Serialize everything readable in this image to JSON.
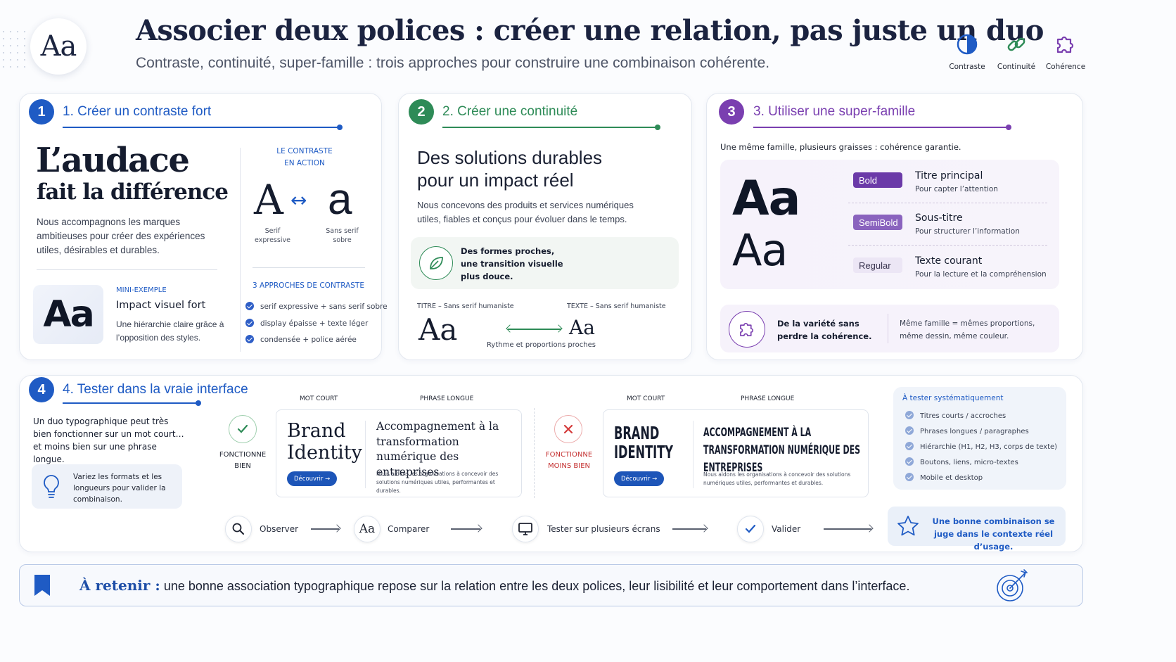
{
  "header": {
    "logo_text": "Aa",
    "title": "Associer deux polices : créer une relation, pas juste un duo",
    "subtitle": "Contraste, continuité, super-famille : trois approches pour construire une combinaison cohérente.",
    "icons": [
      {
        "icon": "half-circle-icon",
        "label": "Contraste",
        "color": "#1f5bc4"
      },
      {
        "icon": "link-icon",
        "label": "Continuité",
        "color": "#2e8b57"
      },
      {
        "icon": "puzzle-icon",
        "label": "Cohérence",
        "color": "#7a3fb0"
      }
    ]
  },
  "section1": {
    "number": "1",
    "title": "1. Créer un contraste fort",
    "color": "#1f5bc4",
    "headline_1": "L’audace",
    "headline_2": "fait la différence",
    "body": "Nous accompagnons les marques ambitieuses pour créer des expériences utiles, désirables et durables.",
    "mini_sample": "Aa",
    "mini_label": "MINI-EXEMPLE",
    "mini_title": "Impact visuel fort",
    "mini_body": "Une hiérarchie claire grâce à l’opposition des styles.",
    "action_label_1": "LE CONTRASTE",
    "action_label_2": "EN ACTION",
    "glyph_left": "A",
    "glyph_arrow": "↔",
    "glyph_right": "a",
    "glyph_left_caption": "Serif expressive",
    "glyph_right_caption": "Sans serif sobre",
    "approaches_title": "3 APPROCHES DE CONTRASTE",
    "approaches": [
      "serif expressive + sans serif sobre",
      "display épaisse + texte léger",
      "condensée + police aérée"
    ]
  },
  "section2": {
    "number": "2",
    "title": "2. Créer une continuité",
    "color": "#2e8b57",
    "headline": "Des solutions durables pour un impact réel",
    "body": "Nous concevons des produits et services numériques utiles, fiables et conçus pour évoluer dans le temps.",
    "callout": "Des formes proches, une transition visuelle plus douce.",
    "title_label": "TITRE – Sans serif humaniste",
    "text_label": "TEXTE – Sans serif humaniste",
    "sample_left": "Aa",
    "sample_right": "Aa",
    "caption": "Rythme et proportions proches"
  },
  "section3": {
    "number": "3",
    "title": "3. Utiliser une super-famille",
    "color": "#7a3fb0",
    "intro": "Une même famille, plusieurs graisses : cohérence garantie.",
    "sample_bold": "Aa",
    "sample_regular": "Aa",
    "weights": [
      {
        "tag": "Bold",
        "title": "Titre principal",
        "desc": "Pour capter l’attention"
      },
      {
        "tag": "SemiBold",
        "title": "Sous-titre",
        "desc": "Pour structurer l’information"
      },
      {
        "tag": "Regular",
        "title": "Texte courant",
        "desc": "Pour la lecture et la compréhension"
      }
    ],
    "footer_left": "De la variété sans perdre la cohérence.",
    "footer_right": "Même famille = mêmes proportions, même dessin, même couleur."
  },
  "section4": {
    "number": "4",
    "title": "4. Tester dans la vraie interface",
    "color": "#1f5bc4",
    "intro": "Un duo typographique peut très bien fonctionner sur un mot court… et moins bien sur une phrase longue.",
    "tip": "Variez les formats et les longueurs pour valider la combinaison.",
    "good": {
      "status": "FONCTIONNE BIEN",
      "label_short": "MOT COURT",
      "label_long": "PHRASE LONGUE",
      "short": "Brand Identity",
      "long": "Accompagnement à la transformation numérique des entreprises",
      "small": "Nous aidons les organisations à concevoir des solutions numériques utiles, performantes et durables.",
      "button": "Découvrir →"
    },
    "bad": {
      "status": "FONCTIONNE MOINS BIEN",
      "label_short": "MOT COURT",
      "label_long": "PHRASE LONGUE",
      "short": "BRAND IDENTITY",
      "long": "ACCOMPAGNEMENT À LA TRANSFORMATION NUMÉRIQUE DES ENTREPRISES",
      "small": "Nous aidons les organisations à concevoir des solutions numériques utiles, performantes et durables.",
      "button": "Découvrir →"
    },
    "checklist_title": "À tester systématiquement",
    "checklist": [
      "Titres courts / accroches",
      "Phrases longues / paragraphes",
      "Hiérarchie (H1, H2, H3, corps de texte)",
      "Boutons, liens, micro-textes",
      "Mobile et desktop"
    ],
    "steps": [
      {
        "icon": "magnifier-icon",
        "label": "Observer"
      },
      {
        "icon": "aa-icon",
        "label": "Comparer",
        "glyph": "Aa"
      },
      {
        "icon": "monitor-icon",
        "label": "Tester sur plusieurs écrans"
      },
      {
        "icon": "check-icon",
        "label": "Valider"
      }
    ],
    "conclusion": "Une bonne combinaison se juge dans le contexte réel d’usage."
  },
  "footer": {
    "lead": "À retenir :",
    "text": "une bonne association typographique repose sur la relation entre les deux polices, leur lisibilité et leur comportement dans l’interface."
  }
}
